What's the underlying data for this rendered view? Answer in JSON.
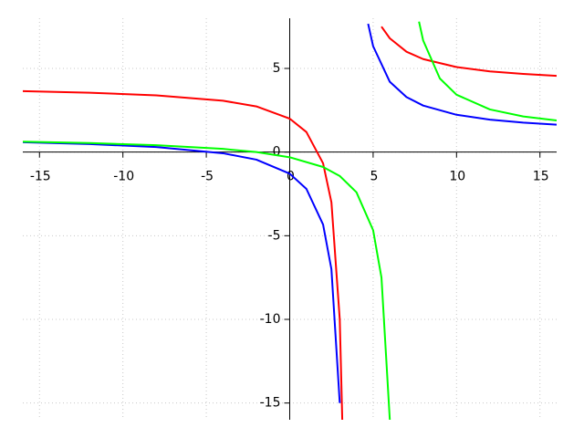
{
  "chart_data": {
    "type": "line",
    "xlim": [
      -16,
      16
    ],
    "ylim": [
      -16,
      8
    ],
    "xticks": [
      -15,
      -10,
      -5,
      0,
      5,
      10,
      15
    ],
    "yticks": [
      -15,
      -10,
      -5,
      0,
      5
    ],
    "grid": true,
    "series": [
      {
        "color": "#0000ff",
        "x": [
          -16,
          -12,
          -8,
          -4,
          -2,
          0,
          1,
          2,
          2.5,
          3,
          3.5,
          4.7,
          5,
          6,
          7,
          8,
          10,
          12,
          14,
          16
        ],
        "values": [
          0.59,
          0.48,
          0.3,
          -0.07,
          -0.45,
          -1.29,
          -2.2,
          -4.33,
          -7,
          -15,
          null,
          7.67,
          6.33,
          4.2,
          3.29,
          2.78,
          2.23,
          1.94,
          1.76,
          1.64
        ]
      },
      {
        "color": "#ff0000",
        "x": [
          -16,
          -12,
          -8,
          -4,
          -2,
          0,
          1,
          2,
          2.5,
          3,
          3.15,
          3.5,
          5.5,
          6,
          7,
          8,
          10,
          12,
          14,
          16
        ],
        "values": [
          3.64,
          3.55,
          3.39,
          3.07,
          2.73,
          2.0,
          1.2,
          -0.67,
          -3,
          -10,
          -16,
          null,
          7.5,
          6.8,
          6.0,
          5.56,
          5.08,
          4.82,
          4.67,
          4.56
        ]
      },
      {
        "color": "#00ff00",
        "x": [
          -16,
          -12,
          -8,
          -4,
          -2,
          0,
          2,
          3,
          4,
          5,
          5.5,
          6,
          6.5,
          7.75,
          8,
          9,
          10,
          12,
          14,
          16
        ],
        "values": [
          0.62,
          0.54,
          0.41,
          0.19,
          0.0,
          -0.31,
          -0.89,
          -1.43,
          -2.4,
          -4.67,
          -7.5,
          -16,
          null,
          7.8,
          6.67,
          4.4,
          3.43,
          2.55,
          2.13,
          1.89
        ]
      }
    ]
  }
}
